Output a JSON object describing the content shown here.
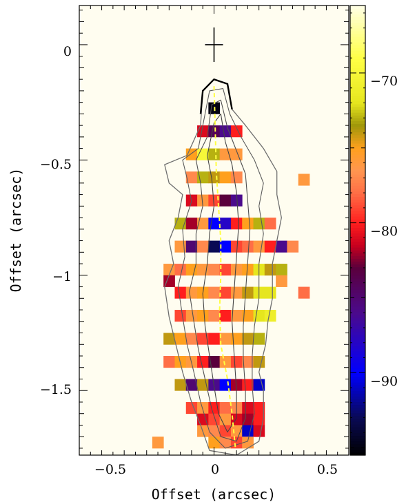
{
  "chart_data": {
    "type": "heatmap",
    "title": "",
    "xlabel": "Offset (arcsec)",
    "ylabel": "Offset (arcsec)",
    "xlim": [
      -0.6,
      0.6
    ],
    "ylim": [
      -1.78,
      0.17
    ],
    "x_ticks": [
      {
        "value": -0.5,
        "label": "−0.5"
      },
      {
        "value": 0,
        "label": "0"
      },
      {
        "value": 0.5,
        "label": "0.5"
      }
    ],
    "y_ticks": [
      {
        "value": 0,
        "label": "0"
      },
      {
        "value": -0.5,
        "label": "−0.5"
      },
      {
        "value": -1,
        "label": "−1"
      },
      {
        "value": -1.5,
        "label": "−1.5"
      }
    ],
    "colorbar": {
      "range": [
        -95.5,
        -65.5
      ],
      "ticks": [
        {
          "value": -70,
          "label": "−70"
        },
        {
          "value": -80,
          "label": "−80"
        },
        {
          "value": -90,
          "label": "−90"
        }
      ],
      "stops": [
        {
          "value": -95.5,
          "color": "#000000"
        },
        {
          "value": -93,
          "color": "#0a0a55"
        },
        {
          "value": -90,
          "color": "#0000ff"
        },
        {
          "value": -86,
          "color": "#4b0a8c"
        },
        {
          "value": -83,
          "color": "#5a003c"
        },
        {
          "value": -81.5,
          "color": "#c8001e"
        },
        {
          "value": -80,
          "color": "#ff1e1e"
        },
        {
          "value": -78,
          "color": "#ff6e46"
        },
        {
          "value": -76.5,
          "color": "#ff9650"
        },
        {
          "value": -75,
          "color": "#ffa01e"
        },
        {
          "value": -73.5,
          "color": "#a0960a"
        },
        {
          "value": -72,
          "color": "#e6e61e"
        },
        {
          "value": -69,
          "color": "#ffff46"
        },
        {
          "value": -65.5,
          "color": "#ffffe6"
        }
      ]
    },
    "grid": false,
    "background_color": "#fffdf0",
    "cell_size": [
      0.05,
      0.05
    ],
    "cells": [
      {
        "x": 0.0,
        "y": -0.275,
        "v": -95
      },
      {
        "x": -0.05,
        "y": -0.375,
        "v": -81
      },
      {
        "x": 0.0,
        "y": -0.375,
        "v": -84
      },
      {
        "x": 0.05,
        "y": -0.375,
        "v": -86
      },
      {
        "x": 0.1,
        "y": -0.375,
        "v": -80
      },
      {
        "x": -0.1,
        "y": -0.475,
        "v": -75
      },
      {
        "x": -0.05,
        "y": -0.475,
        "v": -70
      },
      {
        "x": 0.0,
        "y": -0.475,
        "v": -73
      },
      {
        "x": 0.05,
        "y": -0.475,
        "v": -76
      },
      {
        "x": 0.1,
        "y": -0.475,
        "v": -76
      },
      {
        "x": 0.4,
        "y": -0.585,
        "v": -76
      },
      {
        "x": -0.1,
        "y": -0.575,
        "v": -77
      },
      {
        "x": -0.05,
        "y": -0.575,
        "v": -73
      },
      {
        "x": 0.0,
        "y": -0.575,
        "v": -74
      },
      {
        "x": 0.05,
        "y": -0.575,
        "v": -75
      },
      {
        "x": 0.1,
        "y": -0.575,
        "v": -77
      },
      {
        "x": -0.1,
        "y": -0.675,
        "v": -81
      },
      {
        "x": -0.05,
        "y": -0.675,
        "v": -76
      },
      {
        "x": 0.0,
        "y": -0.675,
        "v": -79
      },
      {
        "x": 0.05,
        "y": -0.675,
        "v": -83
      },
      {
        "x": 0.1,
        "y": -0.675,
        "v": -86
      },
      {
        "x": -0.15,
        "y": -0.775,
        "v": -73
      },
      {
        "x": -0.1,
        "y": -0.775,
        "v": -82
      },
      {
        "x": -0.05,
        "y": -0.775,
        "v": -76
      },
      {
        "x": 0.0,
        "y": -0.775,
        "v": -90
      },
      {
        "x": 0.05,
        "y": -0.775,
        "v": -88
      },
      {
        "x": 0.1,
        "y": -0.775,
        "v": -80
      },
      {
        "x": 0.15,
        "y": -0.775,
        "v": -75
      },
      {
        "x": 0.2,
        "y": -0.775,
        "v": -73
      },
      {
        "x": 0.25,
        "y": -0.775,
        "v": -78
      },
      {
        "x": -0.15,
        "y": -0.875,
        "v": -76
      },
      {
        "x": -0.1,
        "y": -0.875,
        "v": -85
      },
      {
        "x": -0.05,
        "y": -0.875,
        "v": -77
      },
      {
        "x": 0.0,
        "y": -0.875,
        "v": -93
      },
      {
        "x": 0.05,
        "y": -0.875,
        "v": -90
      },
      {
        "x": 0.1,
        "y": -0.875,
        "v": -79
      },
      {
        "x": 0.15,
        "y": -0.875,
        "v": -78
      },
      {
        "x": 0.2,
        "y": -0.875,
        "v": -76
      },
      {
        "x": 0.25,
        "y": -0.875,
        "v": -80
      },
      {
        "x": 0.3,
        "y": -0.875,
        "v": -86
      },
      {
        "x": 0.35,
        "y": -0.875,
        "v": -77
      },
      {
        "x": -0.2,
        "y": -0.975,
        "v": -76
      },
      {
        "x": -0.15,
        "y": -0.975,
        "v": -78
      },
      {
        "x": -0.1,
        "y": -0.975,
        "v": -75
      },
      {
        "x": -0.05,
        "y": -0.975,
        "v": -76
      },
      {
        "x": 0.0,
        "y": -0.975,
        "v": -77
      },
      {
        "x": 0.05,
        "y": -0.975,
        "v": -79
      },
      {
        "x": 0.1,
        "y": -0.975,
        "v": -76
      },
      {
        "x": 0.15,
        "y": -0.975,
        "v": -75
      },
      {
        "x": 0.2,
        "y": -0.975,
        "v": -72
      },
      {
        "x": 0.25,
        "y": -0.975,
        "v": -74
      },
      {
        "x": 0.3,
        "y": -0.975,
        "v": -73
      },
      {
        "x": -0.2,
        "y": -1.025,
        "v": -82
      },
      {
        "x": 0.3,
        "y": -1.025,
        "v": -76
      },
      {
        "x": -0.15,
        "y": -1.075,
        "v": -80
      },
      {
        "x": -0.1,
        "y": -1.075,
        "v": -76
      },
      {
        "x": -0.05,
        "y": -1.075,
        "v": -75
      },
      {
        "x": 0.0,
        "y": -1.075,
        "v": -77
      },
      {
        "x": 0.05,
        "y": -1.075,
        "v": -79
      },
      {
        "x": 0.1,
        "y": -1.075,
        "v": -76
      },
      {
        "x": 0.15,
        "y": -1.075,
        "v": -74
      },
      {
        "x": 0.2,
        "y": -1.075,
        "v": -72
      },
      {
        "x": 0.25,
        "y": -1.075,
        "v": -72
      },
      {
        "x": 0.4,
        "y": -1.075,
        "v": -78
      },
      {
        "x": -0.15,
        "y": -1.175,
        "v": -79
      },
      {
        "x": -0.1,
        "y": -1.175,
        "v": -76
      },
      {
        "x": -0.05,
        "y": -1.175,
        "v": -75
      },
      {
        "x": 0.0,
        "y": -1.175,
        "v": -77
      },
      {
        "x": 0.05,
        "y": -1.175,
        "v": -80
      },
      {
        "x": 0.1,
        "y": -1.175,
        "v": -76
      },
      {
        "x": 0.15,
        "y": -1.175,
        "v": -75
      },
      {
        "x": 0.2,
        "y": -1.175,
        "v": -72
      },
      {
        "x": 0.25,
        "y": -1.175,
        "v": -71
      },
      {
        "x": -0.2,
        "y": -1.275,
        "v": -74
      },
      {
        "x": -0.15,
        "y": -1.275,
        "v": -75
      },
      {
        "x": -0.1,
        "y": -1.275,
        "v": -77
      },
      {
        "x": -0.05,
        "y": -1.275,
        "v": -79
      },
      {
        "x": 0.0,
        "y": -1.275,
        "v": -80
      },
      {
        "x": 0.05,
        "y": -1.275,
        "v": -76
      },
      {
        "x": 0.1,
        "y": -1.275,
        "v": -75
      },
      {
        "x": 0.15,
        "y": -1.275,
        "v": -74
      },
      {
        "x": 0.2,
        "y": -1.275,
        "v": -73
      },
      {
        "x": -0.2,
        "y": -1.375,
        "v": -78
      },
      {
        "x": -0.15,
        "y": -1.375,
        "v": -75
      },
      {
        "x": -0.1,
        "y": -1.375,
        "v": -76
      },
      {
        "x": -0.05,
        "y": -1.375,
        "v": -80
      },
      {
        "x": 0.0,
        "y": -1.375,
        "v": -83
      },
      {
        "x": 0.05,
        "y": -1.375,
        "v": -76
      },
      {
        "x": 0.1,
        "y": -1.375,
        "v": -79
      },
      {
        "x": 0.15,
        "y": -1.375,
        "v": -77
      },
      {
        "x": 0.2,
        "y": -1.375,
        "v": -74
      },
      {
        "x": -0.15,
        "y": -1.475,
        "v": -74
      },
      {
        "x": -0.1,
        "y": -1.475,
        "v": -85
      },
      {
        "x": -0.05,
        "y": -1.475,
        "v": -74
      },
      {
        "x": 0.0,
        "y": -1.475,
        "v": -86
      },
      {
        "x": 0.05,
        "y": -1.475,
        "v": -90
      },
      {
        "x": 0.1,
        "y": -1.475,
        "v": -82
      },
      {
        "x": 0.15,
        "y": -1.475,
        "v": -80
      },
      {
        "x": 0.2,
        "y": -1.475,
        "v": -91
      },
      {
        "x": -0.1,
        "y": -1.575,
        "v": -79
      },
      {
        "x": -0.05,
        "y": -1.575,
        "v": -76
      },
      {
        "x": 0.0,
        "y": -1.575,
        "v": -80
      },
      {
        "x": 0.05,
        "y": -1.575,
        "v": -78
      },
      {
        "x": 0.1,
        "y": -1.575,
        "v": -77
      },
      {
        "x": 0.15,
        "y": -1.575,
        "v": -81
      },
      {
        "x": 0.2,
        "y": -1.575,
        "v": -80
      },
      {
        "x": -0.05,
        "y": -1.625,
        "v": -81
      },
      {
        "x": 0.0,
        "y": -1.625,
        "v": -79
      },
      {
        "x": 0.05,
        "y": -1.625,
        "v": -76
      },
      {
        "x": 0.1,
        "y": -1.625,
        "v": -81
      },
      {
        "x": 0.15,
        "y": -1.625,
        "v": -82
      },
      {
        "x": 0.2,
        "y": -1.625,
        "v": -80
      },
      {
        "x": -0.05,
        "y": -1.675,
        "v": -76
      },
      {
        "x": 0.0,
        "y": -1.675,
        "v": -77
      },
      {
        "x": 0.05,
        "y": -1.675,
        "v": -79
      },
      {
        "x": 0.1,
        "y": -1.675,
        "v": -76
      },
      {
        "x": 0.15,
        "y": -1.675,
        "v": -91
      },
      {
        "x": 0.2,
        "y": -1.675,
        "v": -81
      },
      {
        "x": 0.0,
        "y": -1.725,
        "v": -75
      },
      {
        "x": 0.05,
        "y": -1.725,
        "v": -77
      },
      {
        "x": 0.1,
        "y": -1.725,
        "v": -79
      },
      {
        "x": 0.15,
        "y": -1.725,
        "v": -76
      },
      {
        "x": -0.25,
        "y": -1.725,
        "v": -76
      }
    ],
    "center_marker": {
      "x": 0,
      "y": 0,
      "half_size": 0.05
    },
    "ridge_line": {
      "color": "#ffff40",
      "points": [
        [
          0.0,
          -0.18
        ],
        [
          0.005,
          -0.35
        ],
        [
          0.01,
          -0.55
        ],
        [
          0.02,
          -0.7
        ],
        [
          0.03,
          -0.85
        ],
        [
          0.03,
          -1.0
        ],
        [
          0.025,
          -1.15
        ],
        [
          0.03,
          -1.3
        ],
        [
          0.06,
          -1.45
        ],
        [
          0.08,
          -1.6
        ],
        [
          0.095,
          -1.75
        ]
      ]
    },
    "contours": [
      {
        "level": 1,
        "points": [
          [
            -0.22,
            -0.52
          ],
          [
            -0.12,
            -0.48
          ],
          [
            -0.06,
            -0.35
          ],
          [
            -0.05,
            -0.2
          ],
          [
            0.0,
            -0.15
          ],
          [
            0.06,
            -0.17
          ],
          [
            0.08,
            -0.28
          ],
          [
            0.14,
            -0.35
          ],
          [
            0.22,
            -0.45
          ],
          [
            0.28,
            -0.55
          ],
          [
            0.28,
            -0.65
          ],
          [
            0.3,
            -0.75
          ],
          [
            0.28,
            -0.85
          ],
          [
            0.26,
            -0.95
          ],
          [
            0.26,
            -1.1
          ],
          [
            0.24,
            -1.2
          ],
          [
            0.23,
            -1.3
          ],
          [
            0.2,
            -1.42
          ],
          [
            0.22,
            -1.5
          ],
          [
            0.22,
            -1.62
          ],
          [
            0.2,
            -1.72
          ],
          [
            0.1,
            -1.78
          ],
          [
            -0.02,
            -1.76
          ],
          [
            -0.06,
            -1.65
          ],
          [
            -0.1,
            -1.55
          ],
          [
            -0.14,
            -1.42
          ],
          [
            -0.17,
            -1.3
          ],
          [
            -0.2,
            -1.18
          ],
          [
            -0.22,
            -1.05
          ],
          [
            -0.18,
            -0.95
          ],
          [
            -0.2,
            -0.85
          ],
          [
            -0.16,
            -0.75
          ],
          [
            -0.14,
            -0.65
          ],
          [
            -0.2,
            -0.6
          ],
          [
            -0.22,
            -0.52
          ]
        ]
      },
      {
        "level": 2,
        "points": [
          [
            -0.14,
            -0.5
          ],
          [
            -0.07,
            -0.45
          ],
          [
            -0.04,
            -0.3
          ],
          [
            -0.02,
            -0.2
          ],
          [
            0.04,
            -0.19
          ],
          [
            0.07,
            -0.3
          ],
          [
            0.12,
            -0.4
          ],
          [
            0.18,
            -0.5
          ],
          [
            0.22,
            -0.6
          ],
          [
            0.2,
            -0.7
          ],
          [
            0.22,
            -0.82
          ],
          [
            0.2,
            -0.95
          ],
          [
            0.2,
            -1.1
          ],
          [
            0.18,
            -1.22
          ],
          [
            0.17,
            -1.35
          ],
          [
            0.17,
            -1.48
          ],
          [
            0.18,
            -1.6
          ],
          [
            0.15,
            -1.72
          ],
          [
            0.05,
            -1.75
          ],
          [
            -0.02,
            -1.68
          ],
          [
            -0.06,
            -1.55
          ],
          [
            -0.09,
            -1.42
          ],
          [
            -0.12,
            -1.3
          ],
          [
            -0.14,
            -1.18
          ],
          [
            -0.16,
            -1.05
          ],
          [
            -0.13,
            -0.92
          ],
          [
            -0.14,
            -0.8
          ],
          [
            -0.1,
            -0.68
          ],
          [
            -0.12,
            -0.58
          ],
          [
            -0.14,
            -0.5
          ]
        ]
      },
      {
        "level": 3,
        "points": [
          [
            -0.08,
            -0.5
          ],
          [
            -0.03,
            -0.4
          ],
          [
            -0.01,
            -0.26
          ],
          [
            0.03,
            -0.24
          ],
          [
            0.06,
            -0.36
          ],
          [
            0.1,
            -0.46
          ],
          [
            0.14,
            -0.56
          ],
          [
            0.15,
            -0.68
          ],
          [
            0.16,
            -0.8
          ],
          [
            0.15,
            -0.94
          ],
          [
            0.14,
            -1.08
          ],
          [
            0.13,
            -1.22
          ],
          [
            0.13,
            -1.36
          ],
          [
            0.14,
            -1.5
          ],
          [
            0.14,
            -1.62
          ],
          [
            0.1,
            -1.72
          ],
          [
            0.03,
            -1.7
          ],
          [
            -0.01,
            -1.58
          ],
          [
            -0.04,
            -1.45
          ],
          [
            -0.07,
            -1.32
          ],
          [
            -0.09,
            -1.2
          ],
          [
            -0.11,
            -1.07
          ],
          [
            -0.08,
            -0.95
          ],
          [
            -0.08,
            -0.82
          ],
          [
            -0.05,
            -0.7
          ],
          [
            -0.06,
            -0.6
          ],
          [
            -0.08,
            -0.5
          ]
        ]
      },
      {
        "level": 4,
        "points": [
          [
            -0.03,
            -0.48
          ],
          [
            0.0,
            -0.34
          ],
          [
            0.03,
            -0.3
          ],
          [
            0.05,
            -0.42
          ],
          [
            0.08,
            -0.52
          ],
          [
            0.1,
            -0.64
          ],
          [
            0.11,
            -0.78
          ],
          [
            0.1,
            -0.92
          ],
          [
            0.09,
            -1.06
          ],
          [
            0.08,
            -1.2
          ],
          [
            0.09,
            -1.35
          ],
          [
            0.1,
            -1.5
          ],
          [
            0.1,
            -1.62
          ],
          [
            0.06,
            -1.68
          ],
          [
            0.02,
            -1.6
          ],
          [
            0.0,
            -1.48
          ],
          [
            -0.02,
            -1.35
          ],
          [
            -0.04,
            -1.22
          ],
          [
            -0.05,
            -1.08
          ],
          [
            -0.03,
            -0.95
          ],
          [
            -0.02,
            -0.82
          ],
          [
            0.0,
            -0.7
          ],
          [
            -0.01,
            -0.58
          ],
          [
            -0.03,
            -0.48
          ]
        ]
      }
    ]
  }
}
